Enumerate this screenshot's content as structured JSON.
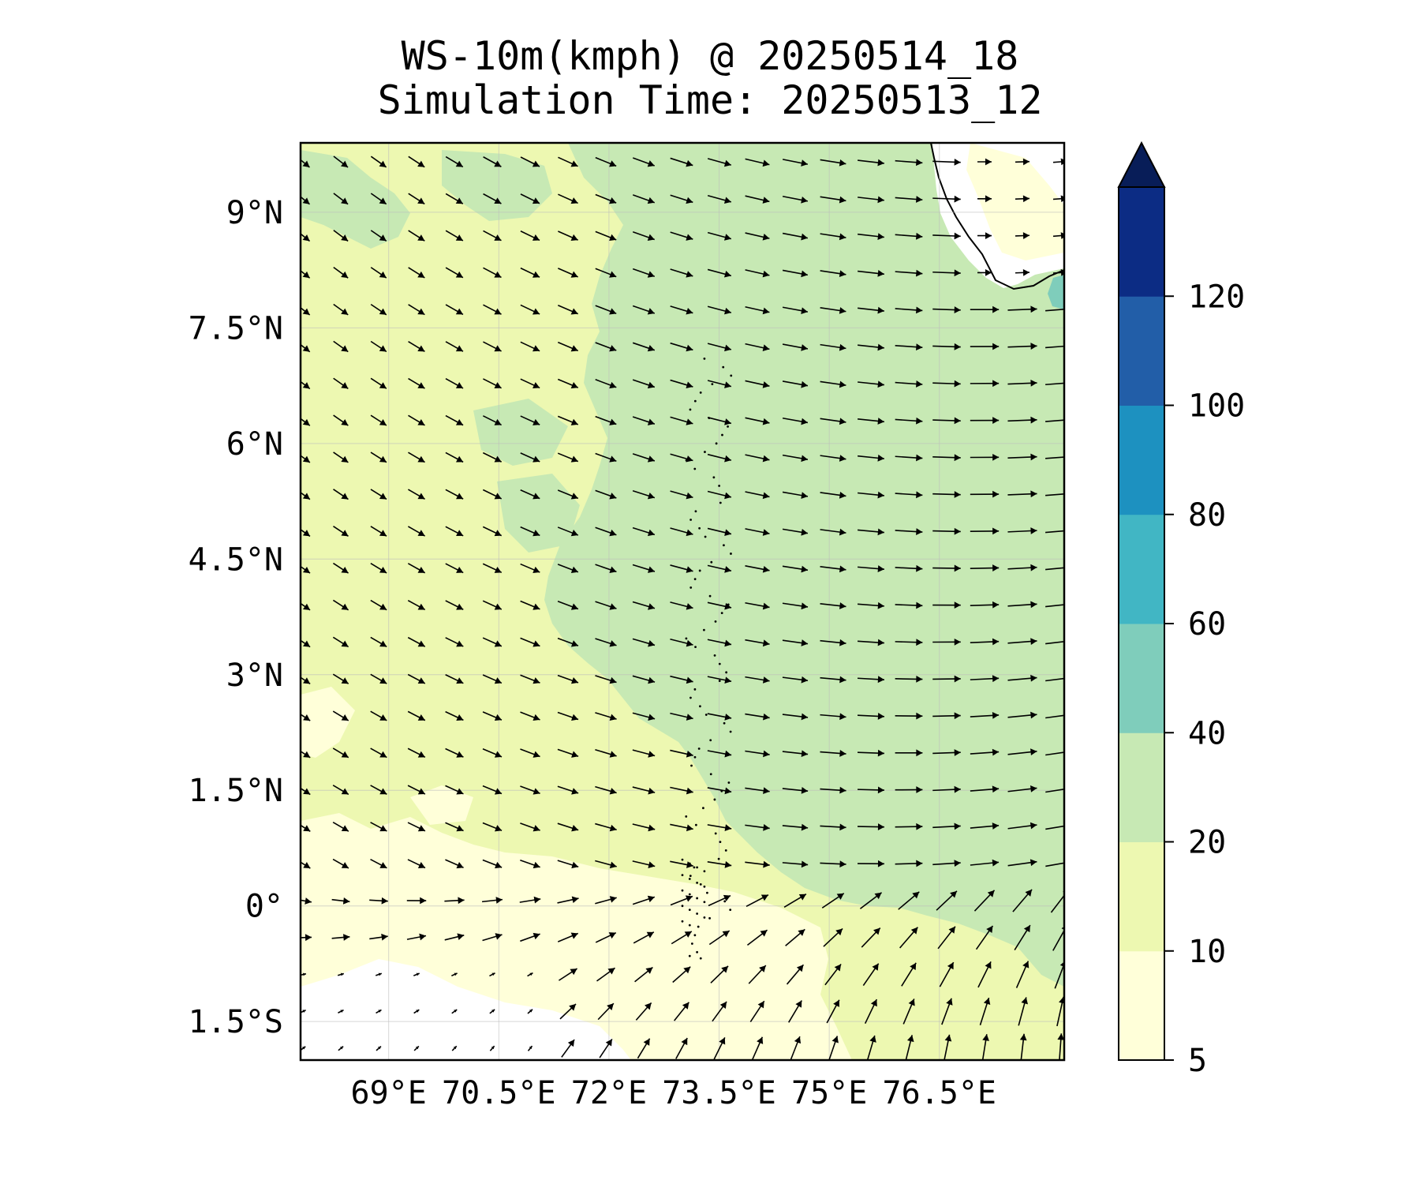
{
  "title_line1": "WS-10m(kmph) @ 20250514_18",
  "title_line2": "Simulation Time: 20250513_12",
  "map": {
    "lon_range": [
      67.8,
      78.2
    ],
    "lat_range": [
      -2.0,
      9.9
    ],
    "lon_ticks": [
      {
        "value": 69.0,
        "label": "69°E"
      },
      {
        "value": 70.5,
        "label": "70.5°E"
      },
      {
        "value": 72.0,
        "label": "72°E"
      },
      {
        "value": 73.5,
        "label": "73.5°E"
      },
      {
        "value": 75.0,
        "label": "75°E"
      },
      {
        "value": 76.5,
        "label": "76.5°E"
      }
    ],
    "lat_ticks": [
      {
        "value": 9.0,
        "label": "9°N"
      },
      {
        "value": 7.5,
        "label": "7.5°N"
      },
      {
        "value": 6.0,
        "label": "6°N"
      },
      {
        "value": 4.5,
        "label": "4.5°N"
      },
      {
        "value": 3.0,
        "label": "3°N"
      },
      {
        "value": 1.5,
        "label": "1.5°N"
      },
      {
        "value": 0.0,
        "label": "0°"
      },
      {
        "value": -1.5,
        "label": "1.5°S"
      }
    ],
    "gridlines": true
  },
  "colorbar": {
    "levels": [
      "5",
      "10",
      "20",
      "40",
      "60",
      "80",
      "100",
      "120"
    ],
    "colors": [
      "#ffffd9",
      "#edf8b1",
      "#c7e9b4",
      "#7fcdbb",
      "#41b6c4",
      "#1d91c0",
      "#225ea8",
      "#0c2c84"
    ],
    "extend": "max",
    "extend_color": "#081d58"
  },
  "fill_colors": {
    "calm": "#ffffff",
    "band_5_10": "#ffffd9",
    "band_10_20": "#edf8b1",
    "band_20_40": "#c7e9b4",
    "band_40_60": "#7fcdbb"
  }
}
